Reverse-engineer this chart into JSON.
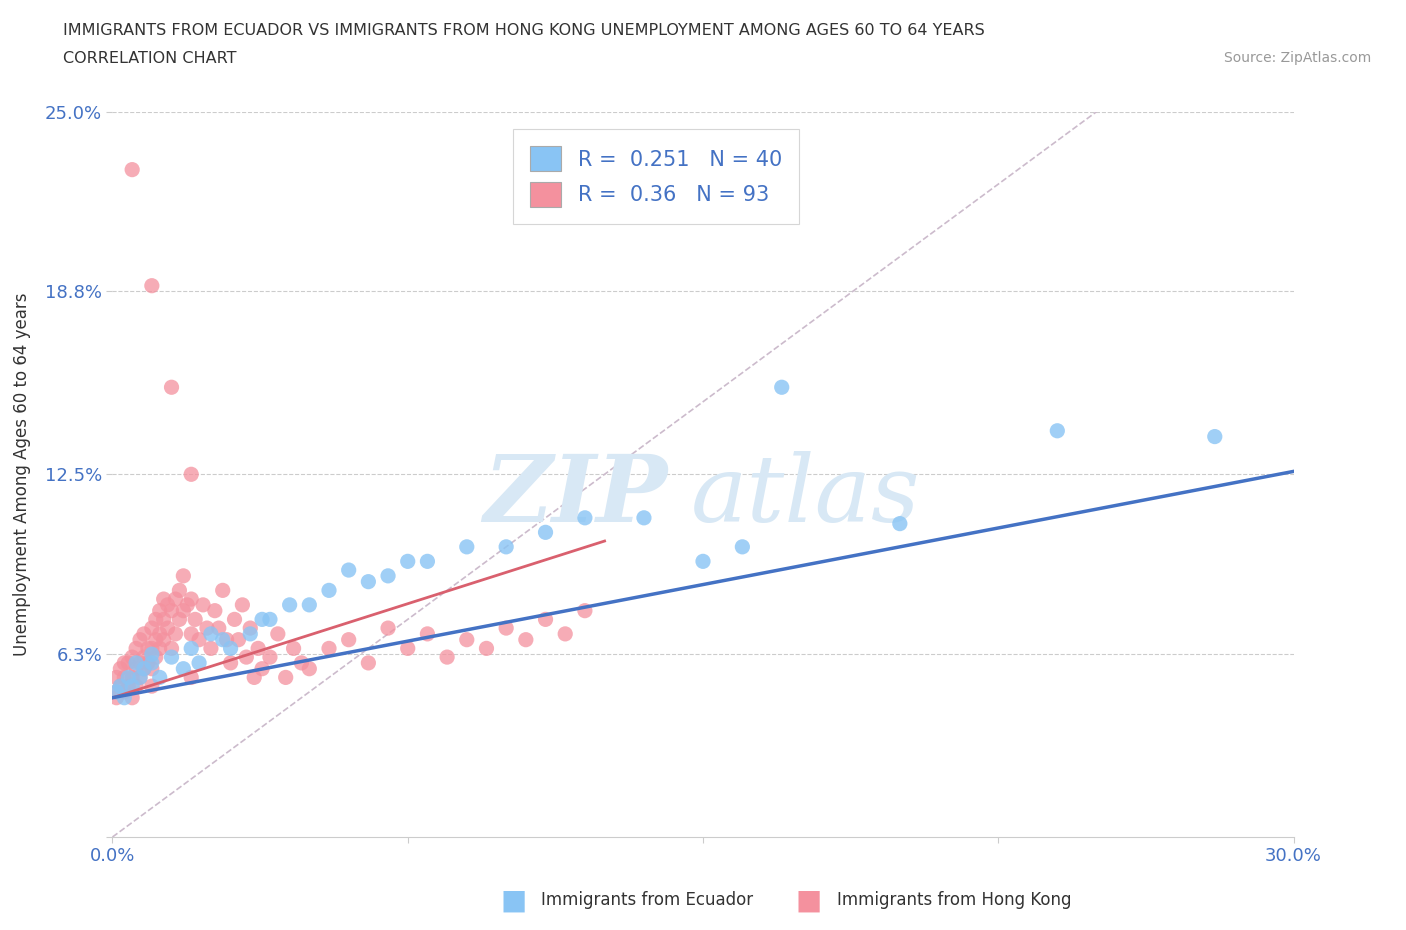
{
  "title_line1": "IMMIGRANTS FROM ECUADOR VS IMMIGRANTS FROM HONG KONG UNEMPLOYMENT AMONG AGES 60 TO 64 YEARS",
  "title_line2": "CORRELATION CHART",
  "source_text": "Source: ZipAtlas.com",
  "ylabel": "Unemployment Among Ages 60 to 64 years",
  "xlim": [
    0.0,
    0.3
  ],
  "ylim": [
    0.0,
    0.25
  ],
  "ytick_vals": [
    0.0,
    0.063,
    0.125,
    0.188,
    0.25
  ],
  "ytick_labels": [
    "",
    "6.3%",
    "12.5%",
    "18.8%",
    "25.0%"
  ],
  "xtick_vals": [
    0.0,
    0.075,
    0.15,
    0.225,
    0.3
  ],
  "xtick_labels": [
    "0.0%",
    "",
    "",
    "",
    "30.0%"
  ],
  "ecuador_color": "#89c4f4",
  "hk_color": "#f4919e",
  "ecuador_line_color": "#4472c4",
  "hk_line_color": "#d9606e",
  "diag_line_color": "#ccbbcc",
  "ecuador_R": 0.251,
  "ecuador_N": 40,
  "hk_R": 0.36,
  "hk_N": 93,
  "ec_x": [
    0.001,
    0.002,
    0.003,
    0.004,
    0.005,
    0.006,
    0.007,
    0.008,
    0.01,
    0.01,
    0.012,
    0.015,
    0.018,
    0.02,
    0.022,
    0.025,
    0.028,
    0.03,
    0.035,
    0.038,
    0.04,
    0.045,
    0.05,
    0.055,
    0.06,
    0.065,
    0.07,
    0.075,
    0.08,
    0.09,
    0.1,
    0.11,
    0.12,
    0.135,
    0.15,
    0.16,
    0.17,
    0.2,
    0.24,
    0.28
  ],
  "ec_y": [
    0.05,
    0.052,
    0.048,
    0.055,
    0.052,
    0.06,
    0.055,
    0.058,
    0.063,
    0.06,
    0.055,
    0.062,
    0.058,
    0.065,
    0.06,
    0.07,
    0.068,
    0.065,
    0.07,
    0.075,
    0.075,
    0.08,
    0.08,
    0.085,
    0.092,
    0.088,
    0.09,
    0.095,
    0.095,
    0.1,
    0.1,
    0.105,
    0.11,
    0.11,
    0.095,
    0.1,
    0.155,
    0.108,
    0.14,
    0.138
  ],
  "hk_x": [
    0.001,
    0.001,
    0.001,
    0.002,
    0.002,
    0.003,
    0.003,
    0.003,
    0.004,
    0.004,
    0.005,
    0.005,
    0.005,
    0.006,
    0.006,
    0.006,
    0.007,
    0.007,
    0.007,
    0.008,
    0.008,
    0.008,
    0.009,
    0.009,
    0.01,
    0.01,
    0.01,
    0.01,
    0.011,
    0.011,
    0.011,
    0.012,
    0.012,
    0.012,
    0.013,
    0.013,
    0.013,
    0.014,
    0.014,
    0.015,
    0.015,
    0.016,
    0.016,
    0.017,
    0.017,
    0.018,
    0.018,
    0.019,
    0.02,
    0.02,
    0.02,
    0.021,
    0.022,
    0.023,
    0.024,
    0.025,
    0.026,
    0.027,
    0.028,
    0.029,
    0.03,
    0.031,
    0.032,
    0.033,
    0.034,
    0.035,
    0.036,
    0.037,
    0.038,
    0.04,
    0.042,
    0.044,
    0.046,
    0.048,
    0.05,
    0.055,
    0.06,
    0.065,
    0.07,
    0.075,
    0.08,
    0.085,
    0.09,
    0.095,
    0.1,
    0.105,
    0.11,
    0.115,
    0.12,
    0.005,
    0.01,
    0.015,
    0.02
  ],
  "hk_y": [
    0.055,
    0.05,
    0.048,
    0.052,
    0.058,
    0.05,
    0.055,
    0.06,
    0.052,
    0.06,
    0.048,
    0.055,
    0.062,
    0.052,
    0.058,
    0.065,
    0.055,
    0.06,
    0.068,
    0.058,
    0.062,
    0.07,
    0.06,
    0.065,
    0.052,
    0.058,
    0.065,
    0.072,
    0.062,
    0.068,
    0.075,
    0.065,
    0.07,
    0.078,
    0.068,
    0.075,
    0.082,
    0.072,
    0.08,
    0.065,
    0.078,
    0.07,
    0.082,
    0.075,
    0.085,
    0.078,
    0.09,
    0.08,
    0.055,
    0.07,
    0.082,
    0.075,
    0.068,
    0.08,
    0.072,
    0.065,
    0.078,
    0.072,
    0.085,
    0.068,
    0.06,
    0.075,
    0.068,
    0.08,
    0.062,
    0.072,
    0.055,
    0.065,
    0.058,
    0.062,
    0.07,
    0.055,
    0.065,
    0.06,
    0.058,
    0.065,
    0.068,
    0.06,
    0.072,
    0.065,
    0.07,
    0.062,
    0.068,
    0.065,
    0.072,
    0.068,
    0.075,
    0.07,
    0.078,
    0.23,
    0.19,
    0.155,
    0.125
  ],
  "ec_line_x": [
    0.0,
    0.3
  ],
  "ec_line_y": [
    0.048,
    0.126
  ],
  "hk_line_x": [
    0.0,
    0.125
  ],
  "hk_line_y": [
    0.048,
    0.102
  ],
  "diag_line_x": [
    0.0,
    0.25
  ],
  "diag_line_y": [
    0.0,
    0.25
  ],
  "watermark_zip": "ZIP",
  "watermark_atlas": "atlas"
}
